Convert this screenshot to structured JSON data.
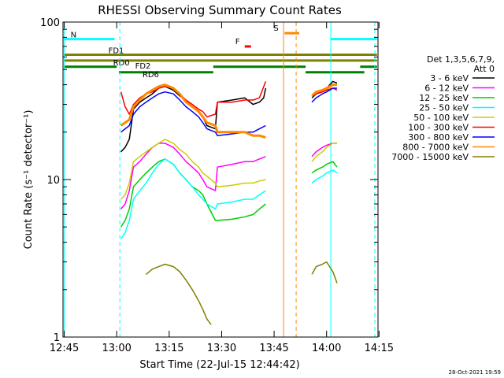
{
  "chart_data": {
    "type": "line",
    "title": "RHESSI Observing Summary Count Rates",
    "xlabel": "Start Time (22-Jul-15 12:44:42)",
    "ylabel": "Count Rate (s⁻¹ detector⁻¹)",
    "y_scale": "log",
    "ylim": [
      1,
      100
    ],
    "xlim": [
      -0.006,
      1.495
    ],
    "x_ticks": [
      {
        "v": 0,
        "label": "12:45"
      },
      {
        "v": 0.25,
        "label": "13:00"
      },
      {
        "v": 0.5,
        "label": "13:15"
      },
      {
        "v": 0.75,
        "label": "13:30"
      },
      {
        "v": 1.0,
        "label": "13:45"
      },
      {
        "v": 1.25,
        "label": "14:00"
      },
      {
        "v": 1.5,
        "label": "14:15"
      }
    ],
    "y_ticks": [
      {
        "v": 1,
        "label": "1"
      },
      {
        "v": 10,
        "label": "10"
      },
      {
        "v": 100,
        "label": "100"
      }
    ],
    "legend": {
      "position": "right",
      "header": [
        "Det 1,3,5,6,7,9,",
        "Att 0"
      ]
    },
    "timestamp": "28-Oct-2021 19:59",
    "series": [
      {
        "name": "3 - 6 keV",
        "color": "#000000",
        "points": [
          [
            0.27,
            15
          ],
          [
            0.29,
            16
          ],
          [
            0.31,
            18
          ],
          [
            0.33,
            28
          ],
          [
            0.36,
            31
          ],
          [
            0.39,
            33
          ],
          [
            0.42,
            35
          ],
          [
            0.45,
            38
          ],
          [
            0.48,
            39
          ],
          [
            0.52,
            37
          ],
          [
            0.55,
            34
          ],
          [
            0.58,
            32
          ],
          [
            0.61,
            29
          ],
          [
            0.64,
            27
          ],
          [
            0.66,
            25
          ],
          [
            0.68,
            22
          ],
          [
            0.72,
            21
          ],
          [
            0.73,
            31
          ],
          [
            0.8,
            32
          ],
          [
            0.86,
            33
          ],
          [
            0.9,
            30
          ],
          [
            0.93,
            31
          ],
          [
            0.95,
            33
          ],
          [
            0.96,
            38
          ],
          [
            1.18,
            33
          ],
          [
            1.2,
            35
          ],
          [
            1.23,
            36
          ],
          [
            1.25,
            38
          ],
          [
            1.28,
            42
          ],
          [
            1.3,
            41
          ]
        ],
        "gaps_after_x": [
          0.96
        ]
      },
      {
        "name": "6 - 12 keV",
        "color": "#ff00ff",
        "points": [
          [
            0.27,
            6.5
          ],
          [
            0.29,
            7
          ],
          [
            0.31,
            8.5
          ],
          [
            0.33,
            12
          ],
          [
            0.36,
            13
          ],
          [
            0.39,
            14.5
          ],
          [
            0.42,
            16
          ],
          [
            0.45,
            17
          ],
          [
            0.48,
            17
          ],
          [
            0.52,
            16
          ],
          [
            0.55,
            14.5
          ],
          [
            0.58,
            13
          ],
          [
            0.61,
            12
          ],
          [
            0.64,
            11
          ],
          [
            0.66,
            10
          ],
          [
            0.68,
            9
          ],
          [
            0.72,
            8.5
          ],
          [
            0.73,
            12
          ],
          [
            0.8,
            12.5
          ],
          [
            0.86,
            13
          ],
          [
            0.9,
            13
          ],
          [
            0.93,
            13.5
          ],
          [
            0.96,
            14
          ],
          [
            1.18,
            14
          ],
          [
            1.2,
            15
          ],
          [
            1.23,
            16
          ],
          [
            1.25,
            16.5
          ],
          [
            1.28,
            17
          ],
          [
            1.3,
            17
          ]
        ],
        "gaps_after_x": [
          0.96
        ]
      },
      {
        "name": "12 - 25 keV",
        "color": "#00cc00",
        "points": [
          [
            0.27,
            5
          ],
          [
            0.29,
            5.5
          ],
          [
            0.31,
            6.5
          ],
          [
            0.33,
            9
          ],
          [
            0.36,
            10
          ],
          [
            0.39,
            11
          ],
          [
            0.42,
            12
          ],
          [
            0.45,
            13
          ],
          [
            0.48,
            13.5
          ],
          [
            0.52,
            12.5
          ],
          [
            0.55,
            11
          ],
          [
            0.58,
            10
          ],
          [
            0.61,
            9
          ],
          [
            0.64,
            8.5
          ],
          [
            0.66,
            8
          ],
          [
            0.68,
            7
          ],
          [
            0.72,
            5.5
          ],
          [
            0.73,
            5.5
          ],
          [
            0.8,
            5.6
          ],
          [
            0.86,
            5.8
          ],
          [
            0.9,
            6
          ],
          [
            0.93,
            6.5
          ],
          [
            0.96,
            7
          ],
          [
            1.18,
            11
          ],
          [
            1.2,
            11.5
          ],
          [
            1.23,
            12
          ],
          [
            1.25,
            12.5
          ],
          [
            1.28,
            13
          ],
          [
            1.3,
            12
          ]
        ],
        "gaps_after_x": [
          0.96
        ]
      },
      {
        "name": "25 - 50 keV",
        "color": "#00ffff",
        "points": [
          [
            0.27,
            4.2
          ],
          [
            0.29,
            4.6
          ],
          [
            0.31,
            5.5
          ],
          [
            0.33,
            7.5
          ],
          [
            0.36,
            8.5
          ],
          [
            0.39,
            9.5
          ],
          [
            0.42,
            11
          ],
          [
            0.45,
            12.5
          ],
          [
            0.48,
            13.5
          ],
          [
            0.52,
            12.5
          ],
          [
            0.55,
            11
          ],
          [
            0.58,
            10
          ],
          [
            0.61,
            9
          ],
          [
            0.64,
            8
          ],
          [
            0.66,
            7.5
          ],
          [
            0.68,
            7
          ],
          [
            0.72,
            6.5
          ],
          [
            0.73,
            7
          ],
          [
            0.8,
            7.2
          ],
          [
            0.86,
            7.5
          ],
          [
            0.9,
            7.5
          ],
          [
            0.93,
            8
          ],
          [
            0.96,
            8.5
          ],
          [
            1.18,
            9.5
          ],
          [
            1.2,
            10
          ],
          [
            1.23,
            10.5
          ],
          [
            1.25,
            11
          ],
          [
            1.28,
            11.5
          ],
          [
            1.3,
            11
          ]
        ],
        "gaps_after_x": [
          0.96
        ]
      },
      {
        "name": "50 - 100 keV",
        "color": "#cccc00",
        "points": [
          [
            0.27,
            7.5
          ],
          [
            0.29,
            8
          ],
          [
            0.31,
            9.5
          ],
          [
            0.33,
            13
          ],
          [
            0.36,
            14
          ],
          [
            0.39,
            15
          ],
          [
            0.42,
            16
          ],
          [
            0.45,
            17
          ],
          [
            0.48,
            18
          ],
          [
            0.52,
            17
          ],
          [
            0.55,
            15.5
          ],
          [
            0.58,
            14.5
          ],
          [
            0.61,
            13
          ],
          [
            0.64,
            12
          ],
          [
            0.66,
            11
          ],
          [
            0.68,
            10.5
          ],
          [
            0.72,
            9.5
          ],
          [
            0.73,
            9
          ],
          [
            0.8,
            9.2
          ],
          [
            0.86,
            9.5
          ],
          [
            0.9,
            9.5
          ],
          [
            0.93,
            9.8
          ],
          [
            0.96,
            10
          ],
          [
            1.18,
            13
          ],
          [
            1.2,
            14
          ],
          [
            1.23,
            15
          ],
          [
            1.25,
            16
          ],
          [
            1.28,
            17
          ],
          [
            1.3,
            17
          ]
        ],
        "gaps_after_x": [
          0.96
        ]
      },
      {
        "name": "100 - 300 keV",
        "color": "#ff0000",
        "points": [
          [
            0.27,
            36
          ],
          [
            0.29,
            29
          ],
          [
            0.31,
            26
          ],
          [
            0.33,
            30
          ],
          [
            0.36,
            33
          ],
          [
            0.39,
            35
          ],
          [
            0.42,
            36
          ],
          [
            0.45,
            38
          ],
          [
            0.48,
            39
          ],
          [
            0.52,
            38
          ],
          [
            0.55,
            35
          ],
          [
            0.58,
            32
          ],
          [
            0.61,
            30
          ],
          [
            0.64,
            28
          ],
          [
            0.66,
            27
          ],
          [
            0.68,
            25
          ],
          [
            0.72,
            26
          ],
          [
            0.73,
            31
          ],
          [
            0.8,
            31
          ],
          [
            0.86,
            32
          ],
          [
            0.9,
            32
          ],
          [
            0.93,
            33
          ],
          [
            0.96,
            42
          ],
          [
            1.18,
            34
          ],
          [
            1.2,
            35
          ],
          [
            1.23,
            36
          ],
          [
            1.25,
            37
          ],
          [
            1.28,
            38
          ],
          [
            1.3,
            37
          ]
        ],
        "gaps_after_x": [
          0.96
        ]
      },
      {
        "name": "300 - 800 keV",
        "color": "#0000ff",
        "points": [
          [
            0.27,
            20
          ],
          [
            0.29,
            21
          ],
          [
            0.31,
            22
          ],
          [
            0.33,
            26
          ],
          [
            0.36,
            29
          ],
          [
            0.39,
            31
          ],
          [
            0.42,
            33
          ],
          [
            0.45,
            35
          ],
          [
            0.48,
            36
          ],
          [
            0.52,
            35
          ],
          [
            0.55,
            32
          ],
          [
            0.58,
            29
          ],
          [
            0.61,
            27
          ],
          [
            0.64,
            25
          ],
          [
            0.66,
            23
          ],
          [
            0.68,
            21
          ],
          [
            0.72,
            20
          ],
          [
            0.73,
            19
          ],
          [
            0.8,
            19.5
          ],
          [
            0.86,
            20
          ],
          [
            0.9,
            20
          ],
          [
            0.93,
            21
          ],
          [
            0.96,
            22
          ],
          [
            1.18,
            31
          ],
          [
            1.2,
            33
          ],
          [
            1.23,
            35
          ],
          [
            1.25,
            36
          ],
          [
            1.28,
            38
          ],
          [
            1.3,
            38
          ]
        ],
        "gaps_after_x": [
          0.96
        ]
      },
      {
        "name": "800 - 7000 keV",
        "color": "#ff8800",
        "points": [
          [
            0.27,
            22
          ],
          [
            0.29,
            23
          ],
          [
            0.31,
            24
          ],
          [
            0.33,
            29
          ],
          [
            0.36,
            32
          ],
          [
            0.39,
            35
          ],
          [
            0.42,
            37
          ],
          [
            0.45,
            39
          ],
          [
            0.48,
            40
          ],
          [
            0.52,
            38
          ],
          [
            0.55,
            35
          ],
          [
            0.58,
            31
          ],
          [
            0.61,
            29
          ],
          [
            0.64,
            27
          ],
          [
            0.66,
            25
          ],
          [
            0.68,
            23
          ],
          [
            0.72,
            22
          ],
          [
            0.73,
            20
          ],
          [
            0.8,
            20
          ],
          [
            0.86,
            20
          ],
          [
            0.9,
            19
          ],
          [
            0.93,
            19
          ],
          [
            0.96,
            18.5
          ],
          [
            1.18,
            34
          ],
          [
            1.2,
            36
          ],
          [
            1.23,
            37
          ],
          [
            1.25,
            38
          ],
          [
            1.28,
            40
          ],
          [
            1.3,
            40
          ]
        ],
        "gaps_after_x": [
          0.96
        ]
      },
      {
        "name": "7000 - 15000 keV",
        "color": "#808000",
        "points": [
          [
            0.39,
            2.5
          ],
          [
            0.42,
            2.7
          ],
          [
            0.45,
            2.8
          ],
          [
            0.48,
            2.9
          ],
          [
            0.52,
            2.8
          ],
          [
            0.55,
            2.6
          ],
          [
            0.58,
            2.3
          ],
          [
            0.61,
            2.0
          ],
          [
            0.64,
            1.7
          ],
          [
            0.66,
            1.5
          ],
          [
            0.68,
            1.3
          ],
          [
            0.7,
            1.2
          ],
          [
            1.18,
            2.5
          ],
          [
            1.2,
            2.8
          ],
          [
            1.23,
            2.9
          ],
          [
            1.25,
            3.0
          ],
          [
            1.28,
            2.6
          ],
          [
            1.3,
            2.2
          ]
        ],
        "gaps_after_x": [
          0.7
        ]
      }
    ],
    "flag_lines": [
      {
        "label": "N",
        "color": "#00ffff",
        "y": 78,
        "segments": [
          [
            0.0,
            0.24
          ],
          [
            1.27,
            1.49
          ]
        ]
      },
      {
        "label": "FD1",
        "color": "#808000",
        "y": 62,
        "segments": [
          [
            0.0,
            1.49
          ]
        ]
      },
      {
        "label": "FD2",
        "color": "#808000",
        "y": 57,
        "segments": [
          [
            0.0,
            1.49
          ]
        ]
      },
      {
        "label": "RD0",
        "color": "#008000",
        "y": 52,
        "segments": [
          [
            0.0,
            0.25
          ],
          [
            0.71,
            1.15
          ],
          [
            1.41,
            1.49
          ]
        ]
      },
      {
        "label": "RD6",
        "color": "#008000",
        "y": 48,
        "segments": [
          [
            0.26,
            0.71
          ],
          [
            1.15,
            1.43
          ]
        ]
      },
      {
        "label": "F",
        "color": "#ff0000",
        "y": 70,
        "segments": [
          [
            0.86,
            0.89
          ]
        ]
      },
      {
        "label": "S",
        "color": "#ff8800",
        "y": 85,
        "segments": [
          [
            1.05,
            1.12
          ]
        ]
      }
    ],
    "vlines": [
      {
        "x": 0.0,
        "color": "#00ffff",
        "style": "solid"
      },
      {
        "x": 0.265,
        "color": "#00ffff",
        "style": "dashed"
      },
      {
        "x": 1.045,
        "color": "#ff8800",
        "style": "solid"
      },
      {
        "x": 1.105,
        "color": "#ff8800",
        "style": "dashed"
      },
      {
        "x": 1.27,
        "color": "#00ffff",
        "style": "solid"
      },
      {
        "x": 1.48,
        "color": "#00ffff",
        "style": "dashed"
      }
    ]
  }
}
